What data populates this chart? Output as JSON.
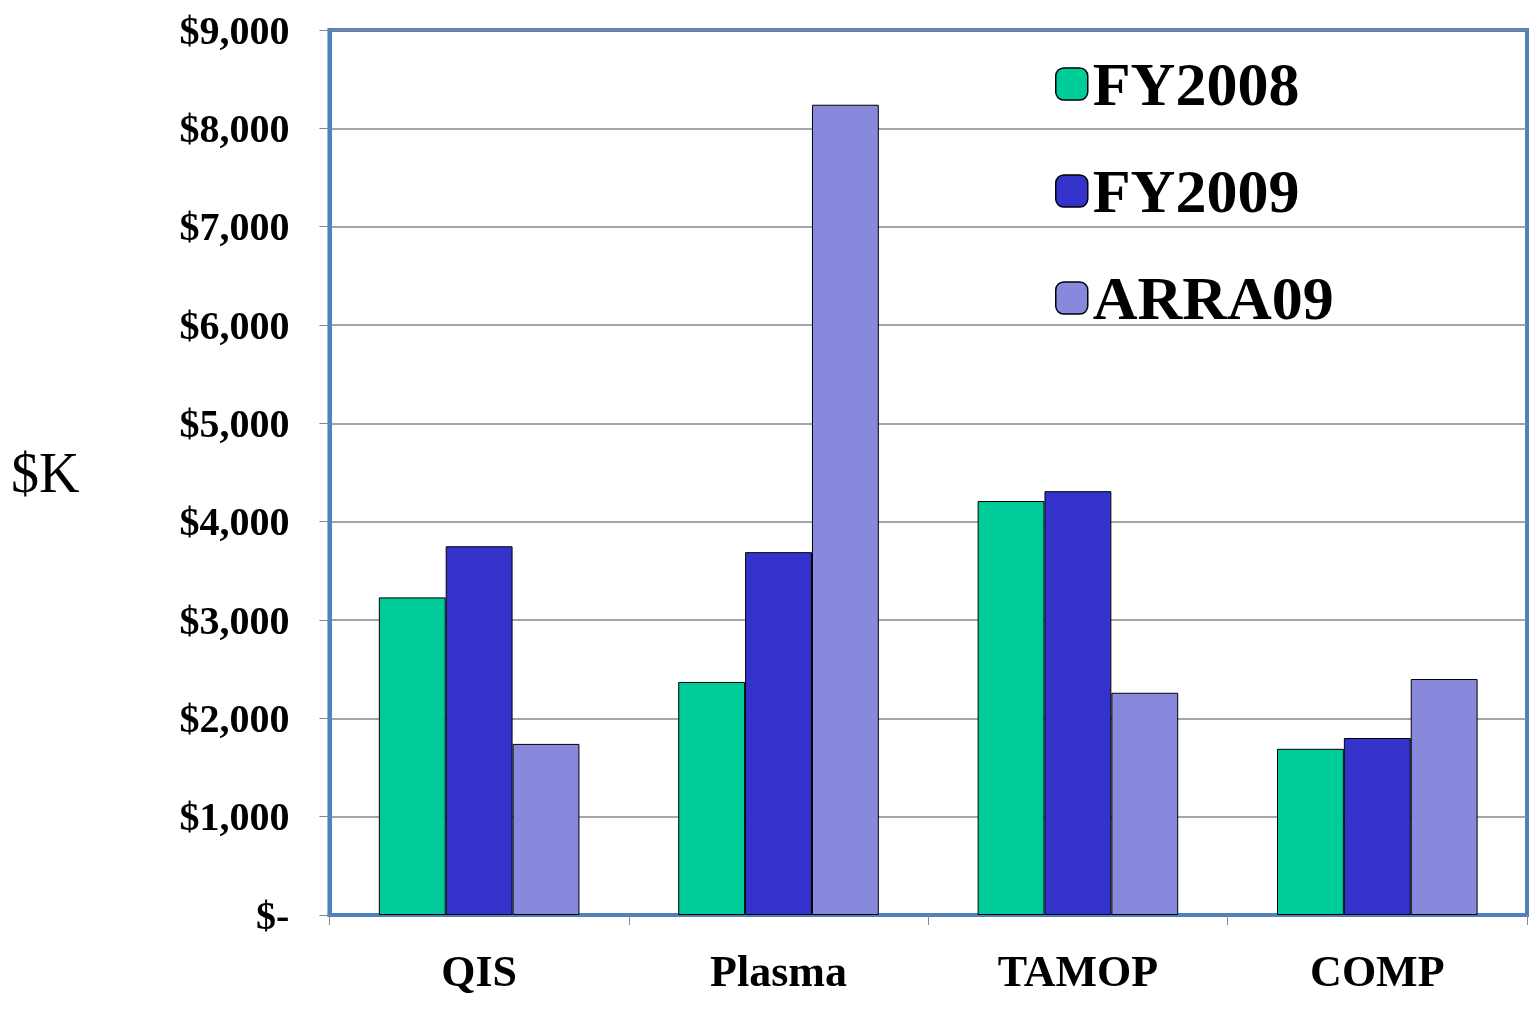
{
  "chart_data": {
    "type": "bar",
    "ylabel": "$K",
    "categories": [
      "QIS",
      "Plasma",
      "TAMOP",
      "COMP"
    ],
    "series": [
      {
        "name": "FY2008",
        "color": "#00cc99",
        "values": [
          3230,
          2370,
          4210,
          1690
        ]
      },
      {
        "name": "FY2009",
        "color": "#3333cc",
        "values": [
          3750,
          3690,
          4310,
          1800
        ]
      },
      {
        "name": "ARRA09",
        "color": "#8888dd",
        "values": [
          1740,
          8240,
          2260,
          2400
        ]
      }
    ],
    "ylim": [
      0,
      9000
    ],
    "yticks": [
      {
        "value": 0,
        "label": "$-"
      },
      {
        "value": 1000,
        "label": "$1,000"
      },
      {
        "value": 2000,
        "label": "$2,000"
      },
      {
        "value": 3000,
        "label": "$3,000"
      },
      {
        "value": 4000,
        "label": "$4,000"
      },
      {
        "value": 5000,
        "label": "$5,000"
      },
      {
        "value": 6000,
        "label": "$6,000"
      },
      {
        "value": 7000,
        "label": "$7,000"
      },
      {
        "value": 8000,
        "label": "$8,000"
      },
      {
        "value": 9000,
        "label": "$9,000"
      }
    ],
    "grid": "y",
    "legend": "top right"
  }
}
